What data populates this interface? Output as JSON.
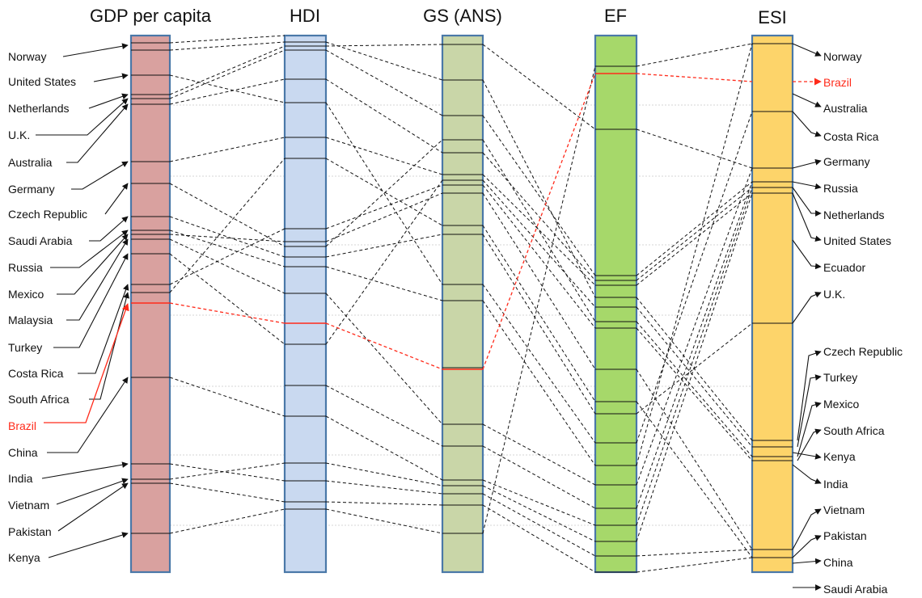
{
  "diagram": {
    "columns": [
      {
        "key": "gdp",
        "title": "GDP per capita",
        "color": "#d9a19f"
      },
      {
        "key": "hdi",
        "title": "HDI",
        "color": "#c9d9f0"
      },
      {
        "key": "gs",
        "title": "GS (ANS)",
        "color": "#c9d6a8"
      },
      {
        "key": "ef",
        "title": "EF",
        "color": "#a6d86a"
      },
      {
        "key": "esi",
        "title": "ESI",
        "color": "#fdd46a"
      }
    ],
    "border_color": "#4a78a8",
    "highlight_color": "#ff2a1a",
    "left_labels": [
      "Norway",
      "United States",
      "Netherlands",
      "U.K.",
      "Australia",
      "Germany",
      "Czech Republic",
      "Saudi Arabia",
      "Russia",
      "Mexico",
      "Malaysia",
      "Turkey",
      "Costa Rica",
      "South Africa",
      "Brazil",
      "China",
      "India",
      "Vietnam",
      "Pakistan",
      "Kenya"
    ],
    "right_labels": [
      "Norway",
      "Brazil",
      "Australia",
      "Costa Rica",
      "Germany",
      "Russia",
      "Netherlands",
      "United States",
      "Ecuador",
      "U.K.",
      "Czech Republic",
      "Turkey",
      "Mexico",
      "South Africa",
      "Kenya",
      "India",
      "Vietnam",
      "Pakistan",
      "China",
      "Saudi Arabia"
    ],
    "highlight_country": "Brazil"
  }
}
